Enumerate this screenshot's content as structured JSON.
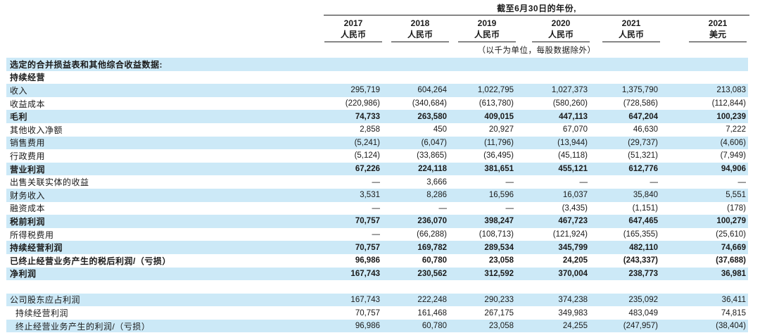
{
  "header": {
    "period_title": "截至6月30日的年份,",
    "unit_note": "（以千为单位，每股数据除外）",
    "columns": [
      {
        "year": "2017",
        "currency": "人民币"
      },
      {
        "year": "2018",
        "currency": "人民币"
      },
      {
        "year": "2019",
        "currency": "人民币"
      },
      {
        "year": "2020",
        "currency": "人民币"
      },
      {
        "year": "2021",
        "currency": "人民币"
      },
      {
        "year": "2021",
        "currency": "美元"
      }
    ]
  },
  "table": {
    "rows": [
      {
        "label": "选定的合并损益表和其他综合收益数据:",
        "values": [
          "",
          "",
          "",
          "",
          "",
          ""
        ],
        "shade": true,
        "bold": true
      },
      {
        "label": "持续经营",
        "values": [
          "",
          "",
          "",
          "",
          "",
          ""
        ],
        "shade": false,
        "bold": true
      },
      {
        "label": "收入",
        "values": [
          "295,719",
          "604,264",
          "1,022,795",
          "1,027,373",
          "1,375,790",
          "213,083"
        ],
        "shade": true
      },
      {
        "label": "收益成本",
        "values": [
          "(220,986)",
          "(340,684)",
          "(613,780)",
          "(580,260)",
          "(728,586)",
          "(112,844)"
        ]
      },
      {
        "label": "毛利",
        "values": [
          "74,733",
          "263,580",
          "409,015",
          "447,113",
          "647,204",
          "100,239"
        ],
        "shade": true,
        "bold": true
      },
      {
        "label": "其他收入净额",
        "values": [
          "2,858",
          "450",
          "20,927",
          "67,070",
          "46,630",
          "7,222"
        ]
      },
      {
        "label": "销售费用",
        "values": [
          "(5,241)",
          "(6,047)",
          "(11,796)",
          "(13,944)",
          "(29,737)",
          "(4,606)"
        ],
        "shade": true
      },
      {
        "label": "行政费用",
        "values": [
          "(5,124)",
          "(33,865)",
          "(36,495)",
          "(45,118)",
          "(51,321)",
          "(7,949)"
        ]
      },
      {
        "label": "营业利润",
        "values": [
          "67,226",
          "224,118",
          "381,651",
          "455,121",
          "612,776",
          "94,906"
        ],
        "shade": true,
        "bold": true
      },
      {
        "label": "出售关联实体的收益",
        "values": [
          "—",
          "3,666",
          "—",
          "—",
          "—",
          "—"
        ]
      },
      {
        "label": "财务收入",
        "values": [
          "3,531",
          "8,286",
          "16,596",
          "16,037",
          "35,840",
          "5,551"
        ],
        "shade": true
      },
      {
        "label": "融资成本",
        "values": [
          "—",
          "—",
          "—",
          "(3,435)",
          "(1,151)",
          "(178)"
        ]
      },
      {
        "label": "税前利润",
        "values": [
          "70,757",
          "236,070",
          "398,247",
          "467,723",
          "647,465",
          "100,279"
        ],
        "shade": true,
        "bold": true
      },
      {
        "label": "所得税费用",
        "values": [
          "—",
          "(66,288)",
          "(108,713)",
          "(121,924)",
          "(165,355)",
          "(25,610)"
        ]
      },
      {
        "label": "持续经营利润",
        "values": [
          "70,757",
          "169,782",
          "289,534",
          "345,799",
          "482,110",
          "74,669"
        ],
        "shade": true,
        "bold": true
      },
      {
        "label": "已终止经营业务产生的税后利润/（亏损）",
        "values": [
          "96,986",
          "60,780",
          "23,058",
          "24,205",
          "(243,337)",
          "(37,688)"
        ],
        "bold": true
      },
      {
        "label": "净利润",
        "values": [
          "167,743",
          "230,562",
          "312,592",
          "370,004",
          "238,773",
          "36,981"
        ],
        "shade": true,
        "bold": true
      },
      {
        "label": "",
        "values": [
          "",
          "",
          "",
          "",
          "",
          ""
        ],
        "spacer": true
      },
      {
        "label": "公司股东应占利润",
        "values": [
          "167,743",
          "222,248",
          "290,233",
          "374,238",
          "235,092",
          "36,411"
        ],
        "shade": true
      },
      {
        "label": "持续经营利润",
        "values": [
          "70,757",
          "161,468",
          "267,175",
          "349,983",
          "483,049",
          "74,815"
        ],
        "indent": true
      },
      {
        "label": "终止经营业务产生的利润/（亏损）",
        "values": [
          "96,986",
          "60,780",
          "23,058",
          "24,255",
          "(247,957)",
          "(38,404)"
        ],
        "shade": true,
        "indent": true
      }
    ]
  },
  "colors": {
    "row_shade": "#cce9f7",
    "rule": "#1f1f1f",
    "text": "#1a1a1a"
  }
}
